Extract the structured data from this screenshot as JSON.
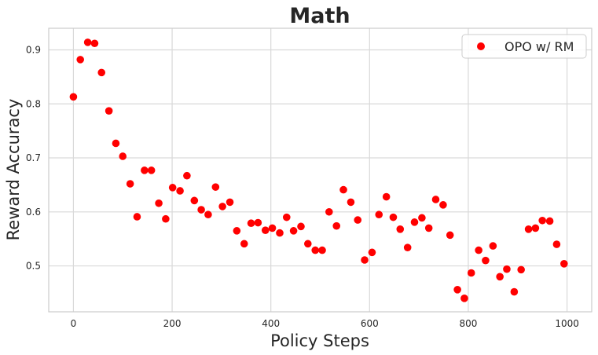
{
  "chart_data": {
    "type": "scatter",
    "title": "Math",
    "xlabel": "Policy Steps",
    "ylabel": "Reward Accuracy",
    "xlim": [
      -50,
      1050
    ],
    "ylim": [
      0.415,
      0.94
    ],
    "x_ticks": [
      0,
      200,
      400,
      600,
      800,
      1000
    ],
    "y_ticks": [
      0.5,
      0.6,
      0.7,
      0.8,
      0.9
    ],
    "x_tick_labels": [
      "0",
      "200",
      "400",
      "600",
      "800",
      "1000"
    ],
    "y_tick_labels": [
      "0.5",
      "0.6",
      "0.7",
      "0.8",
      "0.9"
    ],
    "grid": true,
    "legend_position": "top-right",
    "colors": {
      "series": "#ff0000",
      "grid": "#d9d9d9",
      "frame": "#cccccc",
      "text": "#262626"
    },
    "series": [
      {
        "name": "OPO w/ RM",
        "points": [
          [
            0,
            0.813
          ],
          [
            14,
            0.882
          ],
          [
            29,
            0.914
          ],
          [
            43,
            0.912
          ],
          [
            57,
            0.858
          ],
          [
            72,
            0.787
          ],
          [
            86,
            0.727
          ],
          [
            100,
            0.703
          ],
          [
            115,
            0.652
          ],
          [
            129,
            0.591
          ],
          [
            144,
            0.677
          ],
          [
            158,
            0.677
          ],
          [
            173,
            0.616
          ],
          [
            187,
            0.587
          ],
          [
            201,
            0.645
          ],
          [
            216,
            0.639
          ],
          [
            230,
            0.667
          ],
          [
            245,
            0.621
          ],
          [
            259,
            0.604
          ],
          [
            273,
            0.595
          ],
          [
            288,
            0.646
          ],
          [
            302,
            0.61
          ],
          [
            317,
            0.618
          ],
          [
            331,
            0.565
          ],
          [
            346,
            0.541
          ],
          [
            360,
            0.579
          ],
          [
            374,
            0.58
          ],
          [
            389,
            0.566
          ],
          [
            403,
            0.57
          ],
          [
            418,
            0.561
          ],
          [
            432,
            0.59
          ],
          [
            446,
            0.565
          ],
          [
            461,
            0.573
          ],
          [
            475,
            0.541
          ],
          [
            490,
            0.529
          ],
          [
            504,
            0.529
          ],
          [
            518,
            0.6
          ],
          [
            533,
            0.574
          ],
          [
            547,
            0.641
          ],
          [
            562,
            0.618
          ],
          [
            576,
            0.585
          ],
          [
            590,
            0.511
          ],
          [
            605,
            0.525
          ],
          [
            619,
            0.595
          ],
          [
            634,
            0.628
          ],
          [
            648,
            0.59
          ],
          [
            662,
            0.568
          ],
          [
            677,
            0.534
          ],
          [
            691,
            0.581
          ],
          [
            706,
            0.589
          ],
          [
            720,
            0.57
          ],
          [
            734,
            0.623
          ],
          [
            749,
            0.613
          ],
          [
            763,
            0.557
          ],
          [
            778,
            0.456
          ],
          [
            792,
            0.44
          ],
          [
            806,
            0.487
          ],
          [
            821,
            0.529
          ],
          [
            835,
            0.51
          ],
          [
            850,
            0.537
          ],
          [
            864,
            0.48
          ],
          [
            878,
            0.494
          ],
          [
            893,
            0.452
          ],
          [
            907,
            0.493
          ],
          [
            922,
            0.568
          ],
          [
            936,
            0.57
          ],
          [
            950,
            0.584
          ],
          [
            965,
            0.583
          ],
          [
            979,
            0.54
          ],
          [
            994,
            0.504
          ]
        ]
      }
    ]
  }
}
